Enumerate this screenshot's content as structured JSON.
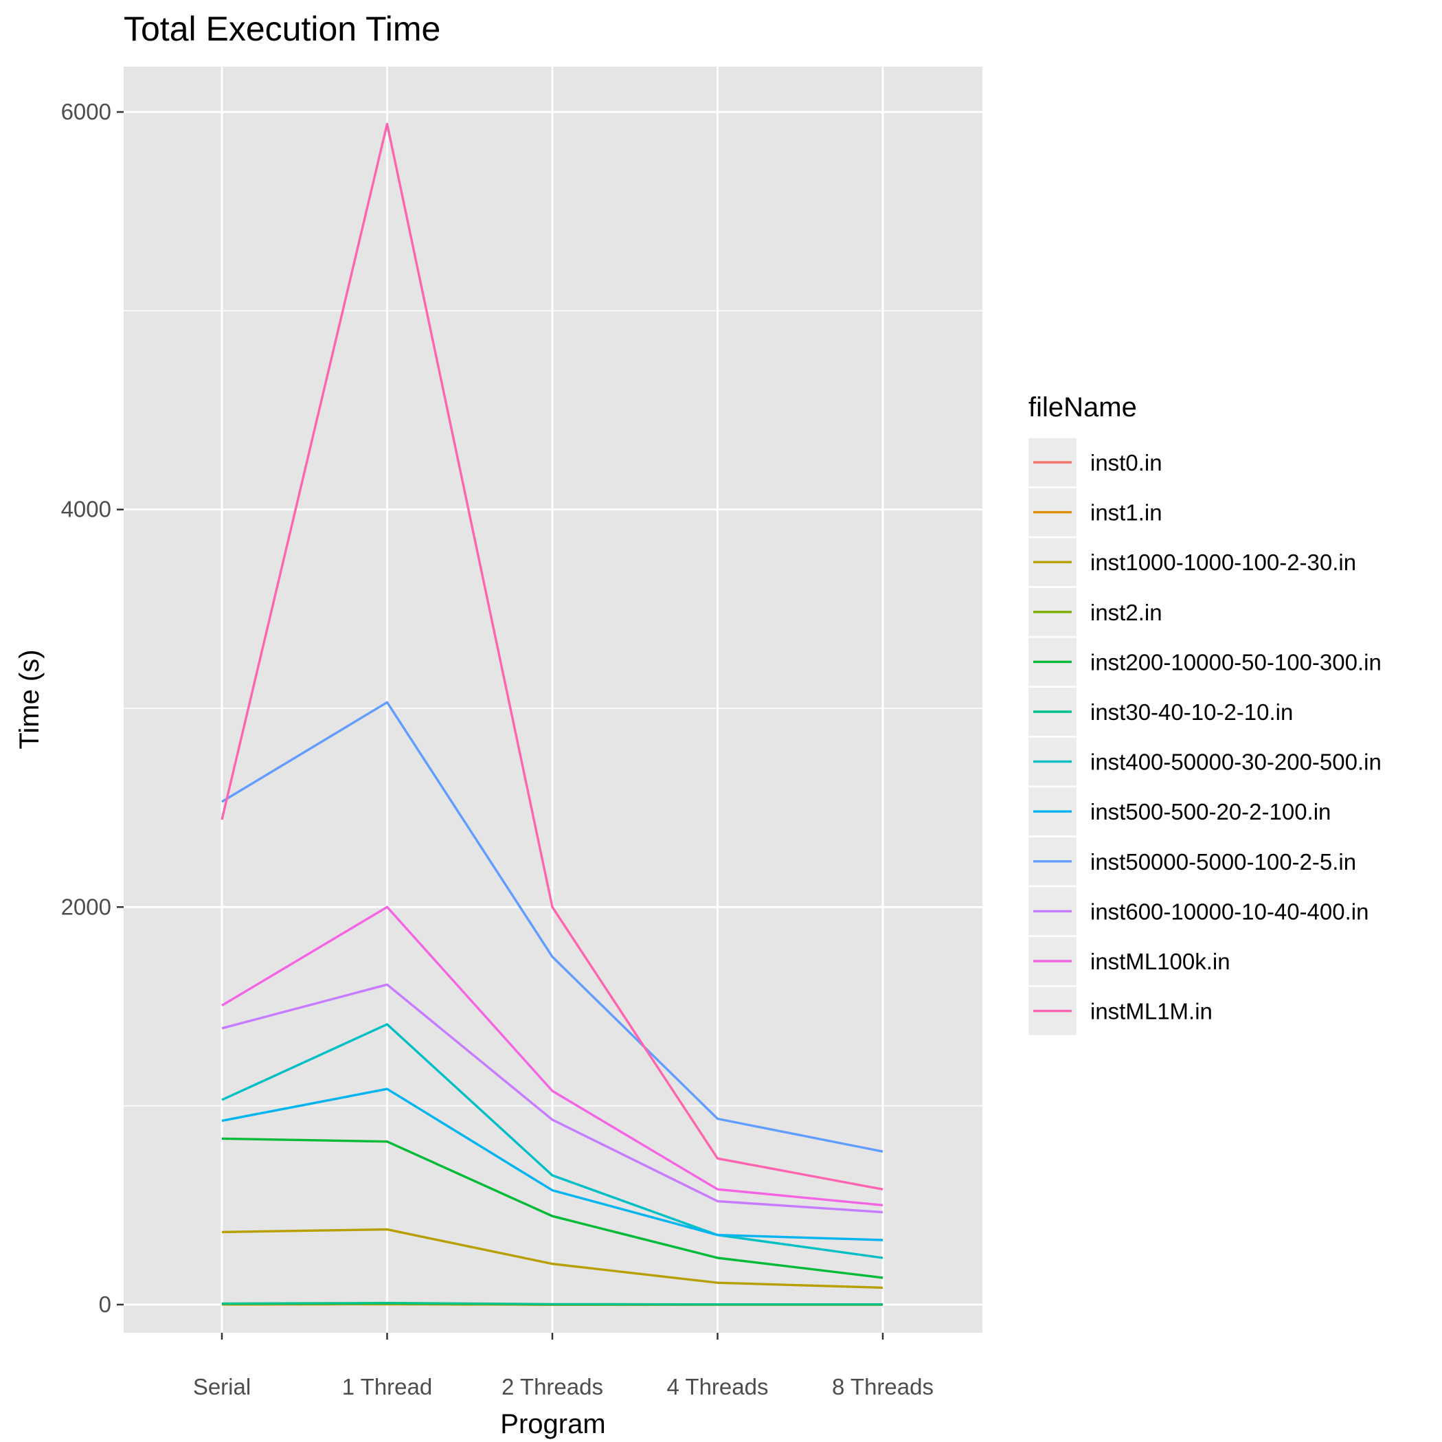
{
  "chart_data": {
    "type": "line",
    "title": "Total Execution Time",
    "xlabel": "Program",
    "ylabel": "Time (s)",
    "categories": [
      "Serial",
      "1 Thread",
      "2 Threads",
      "4 Threads",
      "8 Threads"
    ],
    "ylim": [
      -250,
      6230
    ],
    "yticks": [
      0,
      2000,
      4000,
      6000
    ],
    "grid": true,
    "legend": {
      "title": "fileName",
      "position": "right"
    },
    "series": [
      {
        "name": "inst0.in",
        "color": "#F8766D",
        "values": [
          1,
          2,
          0,
          0,
          0
        ]
      },
      {
        "name": "inst1.in",
        "color": "#DE8C00",
        "values": [
          1,
          2,
          0,
          0,
          0
        ]
      },
      {
        "name": "inst1000-1000-100-2-30.in",
        "color": "#B79F00",
        "values": [
          365,
          378,
          205,
          110,
          85
        ]
      },
      {
        "name": "inst2.in",
        "color": "#7CAE00",
        "values": [
          2,
          3,
          0,
          0,
          0
        ]
      },
      {
        "name": "inst200-10000-50-100-300.in",
        "color": "#00BA38",
        "values": [
          835,
          820,
          445,
          235,
          135
        ]
      },
      {
        "name": "inst30-40-10-2-10.in",
        "color": "#00C08B",
        "values": [
          5,
          8,
          2,
          1,
          1
        ]
      },
      {
        "name": "inst400-50000-30-200-500.in",
        "color": "#00BFC4",
        "values": [
          1030,
          1410,
          650,
          350,
          235
        ]
      },
      {
        "name": "inst500-500-20-2-100.in",
        "color": "#00B4F0",
        "values": [
          925,
          1085,
          575,
          350,
          325
        ]
      },
      {
        "name": "inst50000-5000-100-2-5.in",
        "color": "#619CFF",
        "values": [
          2530,
          3030,
          1750,
          935,
          770
        ]
      },
      {
        "name": "inst600-10000-10-40-400.in",
        "color": "#C77CFF",
        "values": [
          1390,
          1610,
          930,
          520,
          465
        ]
      },
      {
        "name": "instML100k.in",
        "color": "#F564E3",
        "values": [
          1505,
          2000,
          1075,
          580,
          500
        ]
      },
      {
        "name": "instML1M.in",
        "color": "#FF64B0",
        "values": [
          2440,
          5940,
          2000,
          735,
          580
        ]
      }
    ]
  },
  "style": {
    "panel_bg": "#E5E5E5",
    "grid_major": "#FFFFFF",
    "legend_key_bg": "#EBEBEB",
    "tick_color": "#333333"
  }
}
